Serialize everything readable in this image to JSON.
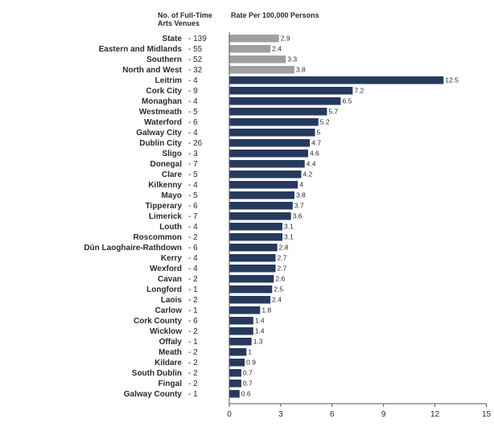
{
  "chart_data": {
    "type": "bar",
    "orientation": "horizontal",
    "headers": {
      "venues_line1": "No. of Full-Time",
      "venues_line2": "Arts Venues",
      "rate": "Rate Per 100,000 Persons"
    },
    "categories": [
      "State",
      "Eastern and Midlands",
      "Southern",
      "North and West",
      "Leitrim",
      "Cork City",
      "Monaghan",
      "Westmeath",
      "Waterford",
      "Galway City",
      "Dublin City",
      "Sligo",
      "Donegal",
      "Clare",
      "Kilkenny",
      "Mayo",
      "Tipperary",
      "Limerick",
      "Louth",
      "Roscommon",
      "Dún Laoghaire-Rathdown",
      "Kerry",
      "Wexford",
      "Cavan",
      "Longford",
      "Laois",
      "Carlow",
      "Cork County",
      "Wicklow",
      "Offaly",
      "Meath",
      "Kildare",
      "South Dublin",
      "Fingal",
      "Galway County"
    ],
    "venue_counts": [
      "- 139",
      "- 55",
      "- 52",
      "- 32",
      "- 4",
      "- 9",
      "- 4",
      "- 5",
      "- 6",
      "- 4",
      "- 26",
      "- 3",
      "- 7",
      "- 5",
      "- 4",
      "- 5",
      "- 6",
      "- 7",
      "- 4",
      "- 2",
      "- 6",
      "- 4",
      "- 4",
      "- 2",
      "- 1",
      "- 2",
      "- 1",
      "- 6",
      "- 2",
      "- 1",
      "- 2",
      "- 2",
      "- 2",
      "- 2",
      "- 1"
    ],
    "values": [
      2.9,
      2.4,
      3.3,
      3.8,
      12.5,
      7.2,
      6.5,
      5.7,
      5.2,
      5,
      4.7,
      4.6,
      4.4,
      4.2,
      4,
      3.8,
      3.7,
      3.6,
      3.1,
      3.1,
      2.8,
      2.7,
      2.7,
      2.6,
      2.5,
      2.4,
      1.8,
      1.4,
      1.4,
      1.3,
      1,
      0.9,
      0.7,
      0.7,
      0.6
    ],
    "value_labels": [
      "2.9",
      "2.4",
      "3.3",
      "3.8",
      "12.5",
      "7.2",
      "6.5",
      "5.7",
      "5.2",
      "5",
      "4.7",
      "4.6",
      "4.4",
      "4.2",
      "4",
      "3.8",
      "3.7",
      "3.6",
      "3.1",
      "3.1",
      "2.8",
      "2.7",
      "2.7",
      "2.6",
      "2.5",
      "2.4",
      "1.8",
      "1.4",
      "1.4",
      "1.3",
      "1",
      "0.9",
      "0.7",
      "0.7",
      "0.6"
    ],
    "highlight_count": 4,
    "xlim": [
      0,
      15
    ],
    "xticks": [
      "0",
      "3",
      "6",
      "9",
      "12",
      "15"
    ],
    "grid": false,
    "colors": {
      "highlight": "#a0a0a0",
      "bar": "#263a5e",
      "text": "#2b2b2b",
      "axis": "#555555"
    }
  }
}
